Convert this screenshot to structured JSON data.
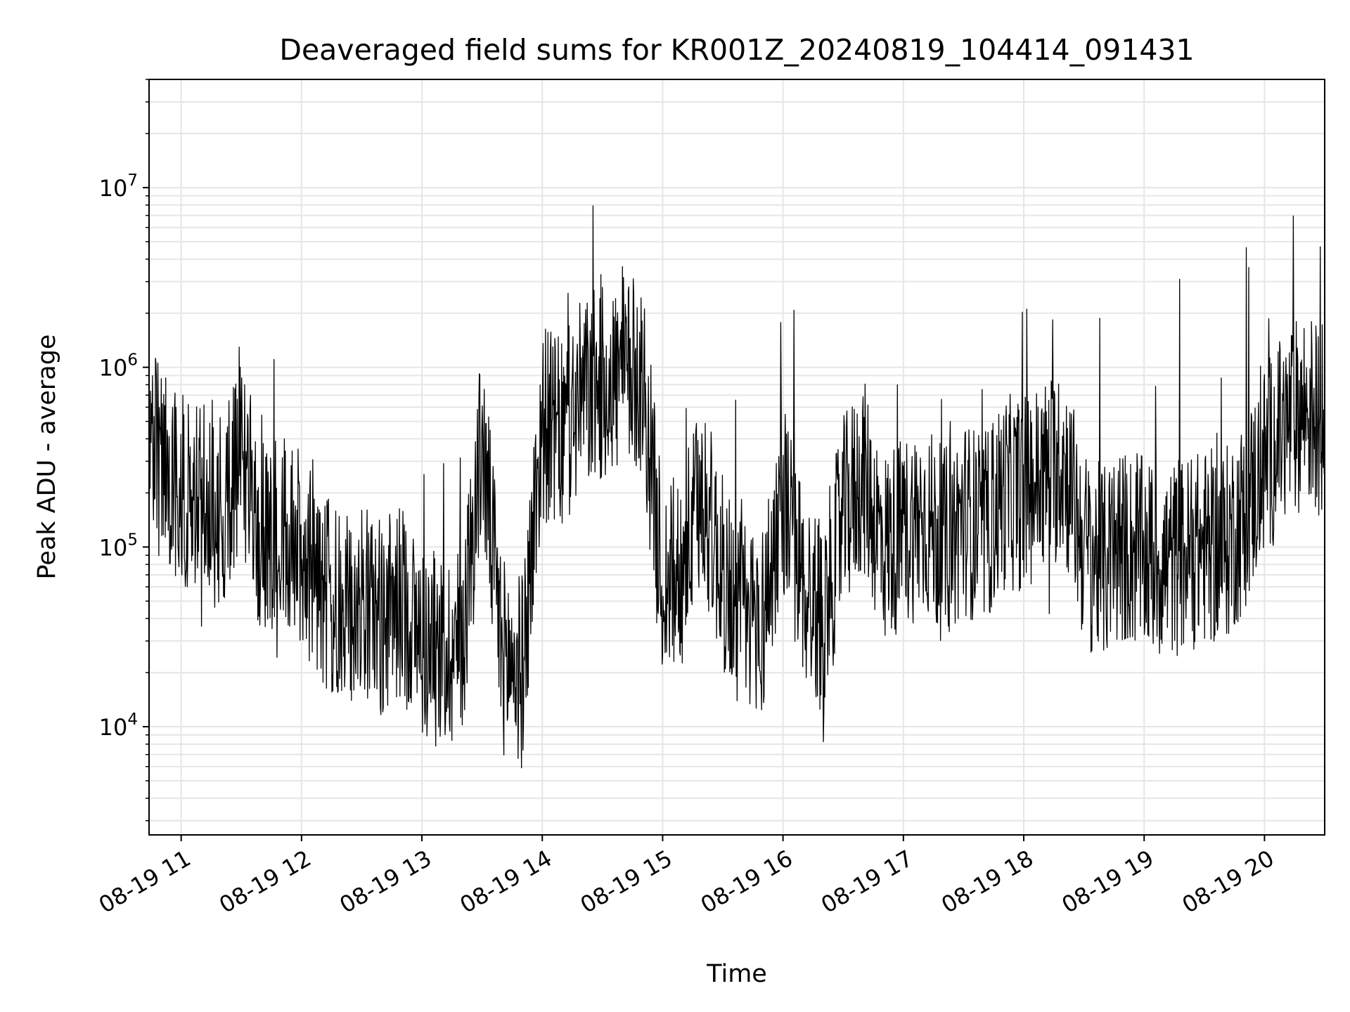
{
  "chart_data": {
    "type": "line",
    "title": "Deaveraged field sums for KR001Z_20240819_104414_091431",
    "xlabel": "Time",
    "ylabel": "Peak ADU - average",
    "yscale": "log",
    "grid": true,
    "grid_minor": true,
    "legend": "none",
    "line_color": "#000000",
    "grid_color": "#e6e6e6",
    "xlim": [
      "2024-08-19 10:44",
      "2024-08-19 20:30"
    ],
    "ylim": [
      2500,
      40000000
    ],
    "x_ticks": [
      {
        "value": "2024-08-19 11:00",
        "label": "08-19 11"
      },
      {
        "value": "2024-08-19 12:00",
        "label": "08-19 12"
      },
      {
        "value": "2024-08-19 13:00",
        "label": "08-19 13"
      },
      {
        "value": "2024-08-19 14:00",
        "label": "08-19 14"
      },
      {
        "value": "2024-08-19 15:00",
        "label": "08-19 15"
      },
      {
        "value": "2024-08-19 16:00",
        "label": "08-19 16"
      },
      {
        "value": "2024-08-19 17:00",
        "label": "08-19 17"
      },
      {
        "value": "2024-08-19 18:00",
        "label": "08-19 18"
      },
      {
        "value": "2024-08-19 19:00",
        "label": "08-19 19"
      },
      {
        "value": "2024-08-19 20:00",
        "label": "08-19 20"
      }
    ],
    "y_ticks": [
      {
        "value": 10000,
        "base": "10",
        "exp": "4"
      },
      {
        "value": 100000,
        "base": "10",
        "exp": "5"
      },
      {
        "value": 1000000,
        "base": "10",
        "exp": "6"
      },
      {
        "value": 10000000,
        "base": "10",
        "exp": "7"
      }
    ],
    "series": [
      {
        "x": [
          "2024-08-19 10:44",
          "2024-08-19 10:50",
          "2024-08-19 11:00",
          "2024-08-19 11:10",
          "2024-08-19 11:20",
          "2024-08-19 11:30",
          "2024-08-19 11:40",
          "2024-08-19 11:50",
          "2024-08-19 12:00",
          "2024-08-19 12:10",
          "2024-08-19 12:20",
          "2024-08-19 12:30",
          "2024-08-19 12:40",
          "2024-08-19 12:50",
          "2024-08-19 13:00",
          "2024-08-19 13:10",
          "2024-08-19 13:20",
          "2024-08-19 13:30",
          "2024-08-19 13:40",
          "2024-08-19 13:50",
          "2024-08-19 14:00",
          "2024-08-19 14:10",
          "2024-08-19 14:20",
          "2024-08-19 14:30",
          "2024-08-19 14:40",
          "2024-08-19 14:50",
          "2024-08-19 15:00",
          "2024-08-19 15:10",
          "2024-08-19 15:20",
          "2024-08-19 15:30",
          "2024-08-19 15:40",
          "2024-08-19 15:50",
          "2024-08-19 16:00",
          "2024-08-19 16:10",
          "2024-08-19 16:20",
          "2024-08-19 16:30",
          "2024-08-19 16:40",
          "2024-08-19 16:50",
          "2024-08-19 17:00",
          "2024-08-19 17:10",
          "2024-08-19 17:20",
          "2024-08-19 17:30",
          "2024-08-19 17:40",
          "2024-08-19 17:50",
          "2024-08-19 18:00",
          "2024-08-19 18:10",
          "2024-08-19 18:20",
          "2024-08-19 18:30",
          "2024-08-19 18:40",
          "2024-08-19 18:50",
          "2024-08-19 19:00",
          "2024-08-19 19:10",
          "2024-08-19 19:20",
          "2024-08-19 19:30",
          "2024-08-19 19:40",
          "2024-08-19 19:50",
          "2024-08-19 20:00",
          "2024-08-19 20:10",
          "2024-08-19 20:20",
          "2024-08-19 20:30"
        ],
        "y": [
          350000,
          300000,
          200000,
          180000,
          150000,
          350000,
          100000,
          120000,
          100000,
          60000,
          40000,
          50000,
          40000,
          50000,
          30000,
          25000,
          30000,
          400000,
          25000,
          20000,
          500000,
          400000,
          700000,
          800000,
          900000,
          900000,
          60000,
          80000,
          200000,
          70000,
          40000,
          40000,
          200000,
          60000,
          40000,
          150000,
          250000,
          100000,
          120000,
          150000,
          100000,
          150000,
          120000,
          200000,
          200000,
          250000,
          300000,
          100000,
          80000,
          100000,
          90000,
          80000,
          90000,
          100000,
          100000,
          150000,
          300000,
          450000,
          600000,
          500000
        ]
      }
    ]
  }
}
